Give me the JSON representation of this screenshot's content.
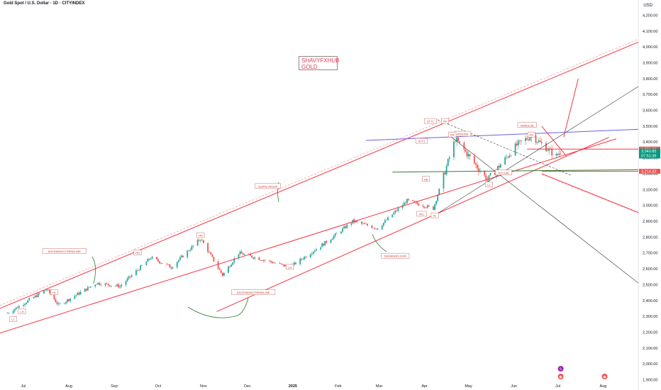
{
  "header": {
    "title": "Gold Spot / U.S. Dollar · 1D · CITYINDEX",
    "currency": "USD"
  },
  "watermark": {
    "line1": "SHAVYFXHUB",
    "line2": "GOLD"
  },
  "colors": {
    "bull": "#26a69a",
    "bear": "#ef5350",
    "trend_red": "#f23645",
    "channel_blue": "#6b5ee8",
    "green_line": "#2e7d32",
    "label_border": "#d06a6a"
  },
  "chart_data": {
    "type": "candlestick",
    "title": "Gold Spot / U.S. Dollar · 1D · CITYINDEX",
    "ylabel": "USD",
    "ylim": [
      1880,
      4260
    ],
    "y_ticks": [
      1900,
      2000,
      2100,
      2200,
      2300,
      2400,
      2500,
      2600,
      2700,
      2800,
      2900,
      3000,
      3100,
      3200,
      3300,
      3400,
      3500,
      3600,
      3700,
      3800,
      3900,
      4000,
      4100,
      4200
    ],
    "y_tick_labels": [
      "1,900.00",
      "2,000.00",
      "2,100.00",
      "2,200.00",
      "2,300.00",
      "2,400.00",
      "2,500.00",
      "2,600.00",
      "2,700.00",
      "2,800.00",
      "2,900.00",
      "3,000.00",
      "3,100.00",
      "3,200.00",
      "3,300.00",
      "3,400.00",
      "3,500.00",
      "3,600.00",
      "3,700.00",
      "3,800.00",
      "3,900.00",
      "4,000.00",
      "4,100.00",
      "4,200.00"
    ],
    "x_ticks": [
      "Jul",
      "Aug",
      "Sep",
      "Oct",
      "Nov",
      "Dec",
      "2025",
      "Feb",
      "Mar",
      "Apr",
      "May",
      "Jun",
      "Jul",
      "Aug"
    ],
    "price_key_points": [
      {
        "date": "2024-06-20",
        "close": 2320
      },
      {
        "date": "2024-07-17",
        "close": 2470
      },
      {
        "date": "2024-07-25",
        "close": 2370
      },
      {
        "date": "2024-08-20",
        "close": 2510
      },
      {
        "date": "2024-09-05",
        "close": 2490
      },
      {
        "date": "2024-09-26",
        "close": 2670
      },
      {
        "date": "2024-10-10",
        "close": 2610
      },
      {
        "date": "2024-10-30",
        "close": 2790
      },
      {
        "date": "2024-11-14",
        "close": 2560
      },
      {
        "date": "2024-11-25",
        "close": 2700
      },
      {
        "date": "2024-12-30",
        "close": 2610
      },
      {
        "date": "2025-01-24",
        "close": 2770
      },
      {
        "date": "2025-02-11",
        "close": 2900
      },
      {
        "date": "2025-02-28",
        "close": 2855
      },
      {
        "date": "2025-03-20",
        "close": 3030
      },
      {
        "date": "2025-04-07",
        "close": 2980
      },
      {
        "date": "2025-04-22",
        "close": 3420
      },
      {
        "date": "2025-05-14",
        "close": 3160
      },
      {
        "date": "2025-06-03",
        "close": 3380
      },
      {
        "date": "2025-06-13",
        "close": 3440
      },
      {
        "date": "2025-06-30",
        "close": 3310
      },
      {
        "date": "2025-07-03",
        "close": 3340.85
      }
    ],
    "price_labels": [
      {
        "value": 3355.09,
        "text": "3,355.09",
        "color": "#ef5350"
      },
      {
        "value": 3340.85,
        "text": "3,340.85",
        "color": "#089981",
        "sub": "07:51:39"
      },
      {
        "value": 3214.83,
        "text": "3,214.83",
        "color": "#ef5350"
      }
    ],
    "annotations": [
      {
        "text": "ASCENDINGTRENDLINE",
        "date": "2024-07-29",
        "price": 2710
      },
      {
        "text": "SUPPLYROOF",
        "date": "2024-12-15",
        "price": 3120
      },
      {
        "text": "ASCENDINGTRENDLINE",
        "date": "2024-12-05",
        "price": 2450
      },
      {
        "text": "DEMANDFLOOR",
        "date": "2025-03-12",
        "price": 2680
      },
      {
        "text": "ATRUDE",
        "date": "2025-04-27",
        "price": 3450
      },
      {
        "text": "VMRULSE",
        "date": "2025-06-10",
        "price": 3505
      },
      {
        "text": "RTY198",
        "date": "2025-05-25",
        "price": 3205
      },
      {
        "text": "STT1",
        "date": "2025-04-05",
        "price": 3530
      },
      {
        "text": "STT1",
        "date": "2025-03-30",
        "price": 3405
      },
      {
        "text": "ATL",
        "date": "2025-03-30",
        "price": 2945
      }
    ],
    "small_labels": [
      {
        "text": "LL",
        "date": "2024-06-24",
        "price": 2280
      },
      {
        "text": "LH",
        "date": "2024-06-30",
        "price": 2330
      },
      {
        "text": "HL",
        "date": "2024-07-22",
        "price": 2450
      },
      {
        "text": "HH",
        "date": "2024-09-17",
        "price": 2700
      },
      {
        "text": "HH",
        "date": "2024-10-30",
        "price": 2810
      },
      {
        "text": "LH",
        "date": "2024-12-30",
        "price": 2610
      },
      {
        "text": "ER",
        "date": "2025-04-20",
        "price": 3445
      },
      {
        "text": "HH",
        "date": "2025-04-02",
        "price": 3165
      },
      {
        "text": "HL",
        "date": "2025-04-08",
        "price": 2935
      },
      {
        "text": "HH",
        "date": "2025-04-15",
        "price": 3530
      },
      {
        "text": "LL",
        "date": "2025-05-15",
        "price": 3130
      },
      {
        "text": "HH",
        "date": "2025-06-13",
        "price": 3445
      }
    ],
    "icons": [
      {
        "name": "lightning-event-icon",
        "date": "2025-07-03",
        "glyph": "ϟ"
      },
      {
        "name": "flag-event-icon",
        "date": "2025-07-03",
        "glyph": "◉"
      },
      {
        "name": "flag-event-icon",
        "date": "2025-08-02",
        "glyph": "◉"
      }
    ],
    "drawings": [
      {
        "name": "channel-upper-line",
        "color": "#f23645",
        "from": {
          "date": "2024-06-15",
          "price": 2350
        },
        "to": {
          "date": "2025-08-25",
          "price": 4030
        }
      },
      {
        "name": "ascending-trendline",
        "color": "#f23645",
        "from": {
          "date": "2024-06-15",
          "price": 2195
        },
        "to": {
          "date": "2025-08-10",
          "price": 3420
        }
      },
      {
        "name": "ascending-trendline-lower",
        "color": "#f23645",
        "from": {
          "date": "2024-11-10",
          "price": 2330
        },
        "to": {
          "date": "2025-08-05",
          "price": 3430
        }
      },
      {
        "name": "blue-resistance-line",
        "color": "#6b5ee8",
        "from": {
          "date": "2025-02-20",
          "price": 3410
        },
        "to": {
          "date": "2025-08-25",
          "price": 3480
        }
      },
      {
        "name": "green-support-line",
        "color": "#2e7d32",
        "from": {
          "date": "2025-03-10",
          "price": 3210
        },
        "to": {
          "date": "2025-08-25",
          "price": 3225
        }
      },
      {
        "name": "red-horizontal-line",
        "color": "#f23645",
        "from": {
          "date": "2025-06-10",
          "price": 3355
        },
        "to": {
          "date": "2025-08-25",
          "price": 3355
        }
      },
      {
        "name": "red-horizontal-line-2",
        "color": "#f23645",
        "from": {
          "date": "2025-06-20",
          "price": 3214.8
        },
        "to": {
          "date": "2025-08-25",
          "price": 3214.8
        }
      },
      {
        "name": "black-diagonal-down",
        "color": "#333333",
        "from": {
          "date": "2025-04-18",
          "price": 3440
        },
        "to": {
          "date": "2025-08-25",
          "price": 2510
        }
      },
      {
        "name": "black-diagonal-up",
        "color": "#333333",
        "from": {
          "date": "2025-04-10",
          "price": 2950
        },
        "to": {
          "date": "2025-08-25",
          "price": 3750
        }
      },
      {
        "name": "dashed-black-trendline",
        "color": "#333333",
        "from": {
          "date": "2025-04-10",
          "price": 3540
        },
        "to": {
          "date": "2025-07-10",
          "price": 3190
        }
      },
      {
        "name": "red-descending-line",
        "color": "#f23645",
        "from": {
          "date": "2025-06-20",
          "price": 3200
        },
        "to": {
          "date": "2025-08-25",
          "price": 2955
        }
      },
      {
        "name": "projection-arrow-up",
        "color": "#f23645",
        "from": {
          "date": "2025-07-05",
          "price": 3430
        },
        "to": {
          "date": "2025-07-15",
          "price": 3800
        }
      },
      {
        "name": "projection-arrow-down",
        "color": "#f23645",
        "from": {
          "date": "2025-06-20",
          "price": 3500
        },
        "to": {
          "date": "2025-07-07",
          "price": 3310
        }
      }
    ]
  }
}
